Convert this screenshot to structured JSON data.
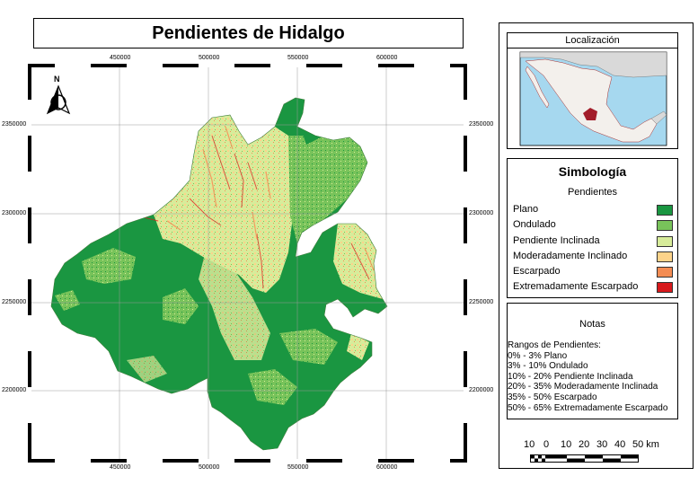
{
  "title": "Pendientes de Hidalgo",
  "map": {
    "x_ticks": [
      "450000",
      "500000",
      "550000",
      "600000"
    ],
    "y_ticks": [
      "2350000",
      "2300000",
      "2250000",
      "2200000"
    ],
    "north_label": "N",
    "colors": {
      "plano": "#1a9641",
      "ondulado": "#78c35a",
      "inclinada": "#d7ec9a",
      "moderado": "#fdd38a",
      "escarpado": "#f38c53",
      "extremo": "#d7191c"
    }
  },
  "locator": {
    "title": "Localización",
    "colors": {
      "sea": "#a6d8ef",
      "land": "#f3f0ec",
      "highlight": "#a31d2a",
      "outside": "#d9d9d9"
    }
  },
  "legend": {
    "title": "Simbología",
    "subtitle": "Pendientes",
    "items": [
      {
        "label": "Plano",
        "color": "#1a9641"
      },
      {
        "label": "Ondulado",
        "color": "#78c35a"
      },
      {
        "label": "Pendiente Inclinada",
        "color": "#d7ec9a"
      },
      {
        "label": "Moderadamente Inclinado",
        "color": "#fdd38a"
      },
      {
        "label": "Escarpado",
        "color": "#f38c53"
      },
      {
        "label": "Extremadamente Escarpado",
        "color": "#d7191c"
      }
    ]
  },
  "notes": {
    "title": "Notas",
    "heading": "Rangos de Pendientes:",
    "lines": [
      "0% - 3% Plano",
      "3% - 10% Ondulado",
      "10% - 20% Pendiente Inclinada",
      "20% - 35% Moderadamente Inclinada",
      "35% - 50% Escarpado",
      "50% - 65% Extremadamente Escarpado"
    ]
  },
  "scale": {
    "labels": [
      "10",
      "0",
      "10",
      "20",
      "30",
      "40",
      "50 km"
    ]
  }
}
